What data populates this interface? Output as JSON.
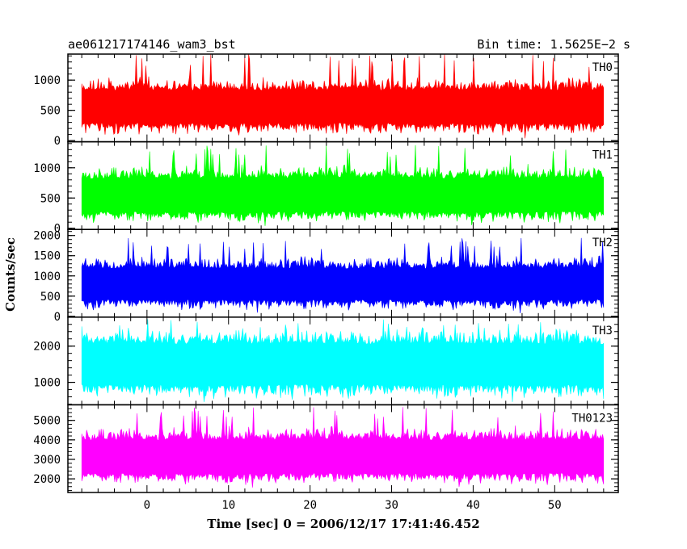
{
  "header": {
    "left_title": "ae061217174146_wam3_bst",
    "right_title": "Bin time: 1.5625E−2 s"
  },
  "chart_data": {
    "type": "line",
    "title": "ae061217174146_wam3_bst",
    "subtitle": "Bin time: 1.5625E−2 s",
    "xlabel": "Time [sec] 0 = 2006/12/17 17:41:46.452",
    "ylabel": "Counts/sec",
    "xlim": [
      -9.7,
      57.8
    ],
    "x_range": [
      -8,
      56
    ],
    "x_ticks": [
      0,
      10,
      20,
      30,
      40,
      50
    ],
    "x_tick_labels": [
      "0",
      "10",
      "20",
      "30",
      "40",
      "50"
    ],
    "grid": false,
    "panels": [
      {
        "name": "TH0",
        "color": "#ff0000",
        "ylim": [
          -20,
          1430
        ],
        "ticks": [
          0,
          500,
          1000
        ],
        "tick_labels": [
          "0",
          "500",
          "1000"
        ],
        "median": 560,
        "low": 80,
        "high": 1050,
        "peak": 1430
      },
      {
        "name": "TH1",
        "color": "#00ff00",
        "ylim": [
          -20,
          1430
        ],
        "ticks": [
          0,
          500,
          1000
        ],
        "tick_labels": [
          "0",
          "500",
          "1000"
        ],
        "median": 540,
        "low": 70,
        "high": 1050,
        "peak": 1380
      },
      {
        "name": "TH2",
        "color": "#0000ff",
        "ylim": [
          -20,
          2150
        ],
        "ticks": [
          0,
          500,
          1000,
          1500,
          2000
        ],
        "tick_labels": [
          "0",
          "500",
          "1000",
          "1500",
          "2000"
        ],
        "median": 790,
        "low": 120,
        "high": 1500,
        "peak": 1950
      },
      {
        "name": "TH3",
        "color": "#00ffff",
        "ylim": [
          380,
          2800
        ],
        "ticks": [
          1000,
          2000
        ],
        "tick_labels": [
          "1000",
          "2000"
        ],
        "median": 1500,
        "low": 500,
        "high": 2500,
        "peak": 2750
      },
      {
        "name": "TH0123",
        "color": "#ff00ff",
        "ylim": [
          1300,
          5800
        ],
        "ticks": [
          2000,
          3000,
          4000,
          5000
        ],
        "tick_labels": [
          "2000",
          "3000",
          "4000",
          "5000"
        ],
        "median": 3100,
        "low": 1650,
        "high": 4700,
        "peak": 5700
      }
    ]
  }
}
